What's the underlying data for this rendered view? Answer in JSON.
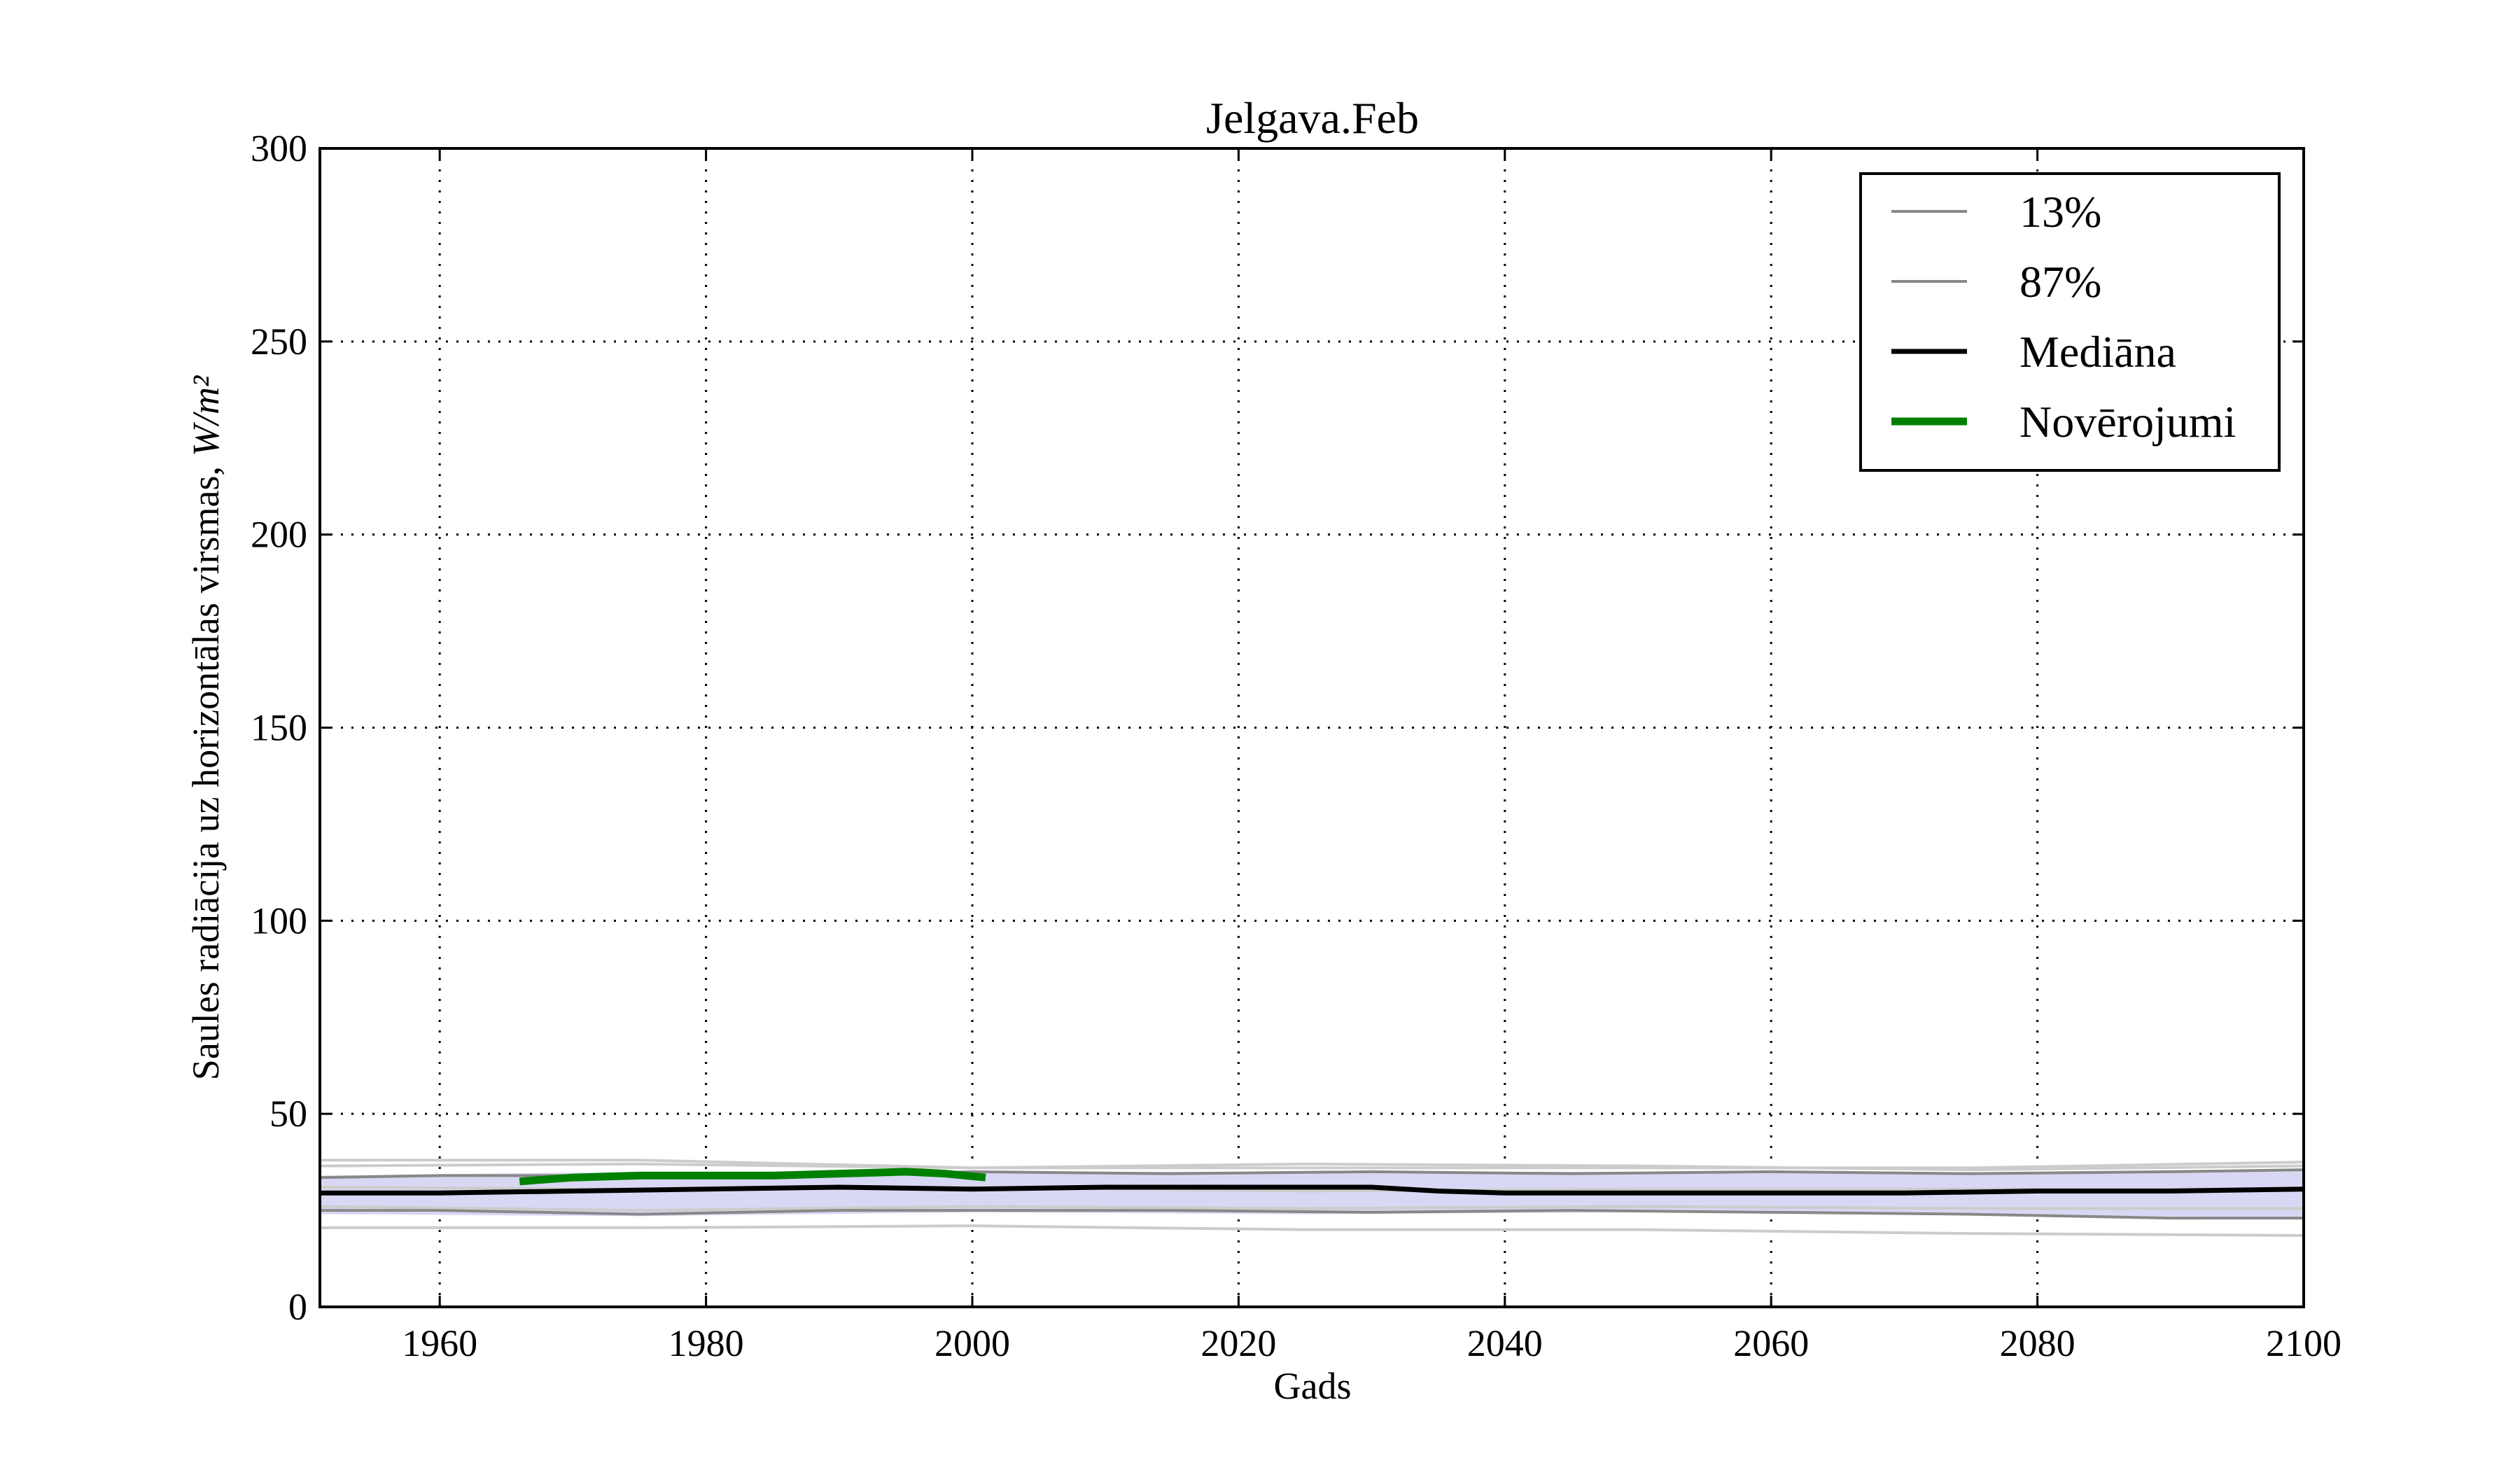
{
  "chart_data": {
    "type": "line",
    "title": "Jelgava.Feb",
    "xlabel": "Gads",
    "ylabel": "Saules radiācija uz horizontālas virsmas,",
    "ylabel_unit": "W/m²",
    "xlim": [
      1951,
      2100
    ],
    "ylim": [
      0,
      300
    ],
    "xticks": [
      1960,
      1980,
      2000,
      2020,
      2040,
      2060,
      2080,
      2100
    ],
    "yticks": [
      0,
      50,
      100,
      150,
      200,
      250,
      300
    ],
    "grid": true,
    "legend_position": "top-right",
    "band": {
      "color": "#d8d8f4",
      "x": [
        1951,
        1975,
        2000,
        2025,
        2050,
        2075,
        2100
      ],
      "lower": [
        24,
        23.5,
        24.5,
        24,
        24.5,
        24,
        23
      ],
      "upper": [
        34,
        35,
        35,
        35,
        35,
        34.5,
        35.5
      ]
    },
    "ensemble": {
      "color": "#cccccc",
      "x": [
        1951,
        1975,
        2000,
        2025,
        2050,
        2075,
        2100
      ],
      "members": [
        [
          38,
          38,
          36,
          36,
          36,
          36,
          37.5
        ],
        [
          20.5,
          20.5,
          21,
          20,
          20,
          19,
          18.5
        ],
        [
          36.5,
          37,
          36,
          37,
          36.5,
          35.5,
          36.5
        ],
        [
          26,
          25,
          26,
          25.5,
          26,
          25.5,
          25.5
        ],
        [
          31,
          30.5,
          31,
          30,
          30.5,
          30.5,
          30.5
        ]
      ]
    },
    "series": [
      {
        "name": "13%",
        "color": "#888888",
        "x": [
          1951,
          1960,
          1975,
          1990,
          2000,
          2015,
          2030,
          2045,
          2060,
          2075,
          2090,
          2100
        ],
        "values": [
          25,
          25,
          24,
          25,
          25,
          25,
          24.5,
          25,
          24.5,
          24,
          23,
          23
        ]
      },
      {
        "name": "87%",
        "color": "#888888",
        "x": [
          1951,
          1960,
          1975,
          1990,
          2000,
          2015,
          2030,
          2045,
          2060,
          2075,
          2090,
          2100
        ],
        "values": [
          33.5,
          34,
          34,
          34,
          35,
          34.5,
          35,
          34.5,
          35,
          34.5,
          35,
          35.5
        ]
      },
      {
        "name": "Mediāna",
        "color": "#000000",
        "x": [
          1951,
          1960,
          1970,
          1980,
          1990,
          2000,
          2010,
          2020,
          2030,
          2035,
          2040,
          2050,
          2060,
          2070,
          2080,
          2090,
          2100
        ],
        "values": [
          29.5,
          29.5,
          30,
          30.5,
          31,
          30.5,
          31,
          31,
          31,
          30,
          29.5,
          29.5,
          29.5,
          29.5,
          30,
          30,
          30.5
        ]
      },
      {
        "name": "Novērojumi",
        "color": "#008000",
        "x": [
          1966,
          1970,
          1975,
          1980,
          1985,
          1990,
          1995,
          1998,
          2001
        ],
        "values": [
          32.5,
          33.5,
          34,
          34,
          34,
          34.5,
          35,
          34.5,
          33.5
        ]
      }
    ]
  }
}
